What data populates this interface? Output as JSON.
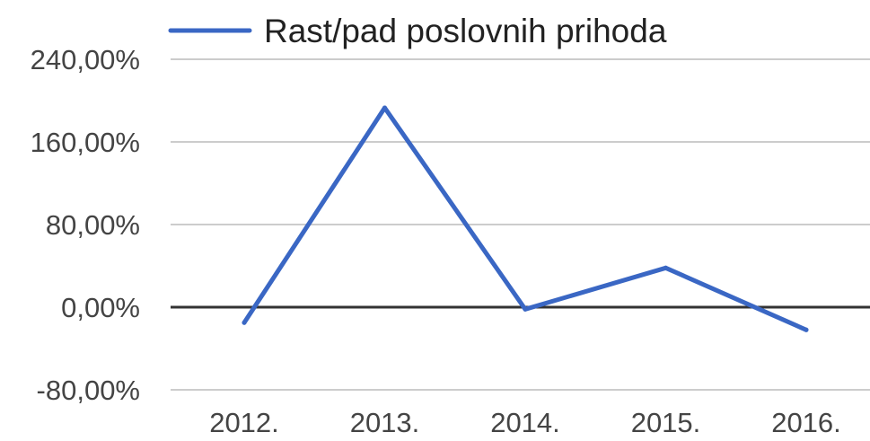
{
  "chart_data": {
    "type": "line",
    "title": "",
    "xlabel": "",
    "ylabel": "",
    "categories": [
      "2012.",
      "2013.",
      "2014.",
      "2015.",
      "2016."
    ],
    "series": [
      {
        "name": "Rast/pad poslovnih prihoda",
        "values": [
          -15,
          193,
          -2,
          38,
          -22
        ],
        "color": "#3a67c4"
      }
    ],
    "ylim": [
      -80,
      240
    ],
    "yticks": [
      240,
      160,
      80,
      0,
      -80
    ],
    "ytick_labels": [
      "240,00%",
      "160,00%",
      "80,00%",
      "0,00%",
      "-80,00%"
    ],
    "grid": true,
    "legend_position": "top"
  }
}
